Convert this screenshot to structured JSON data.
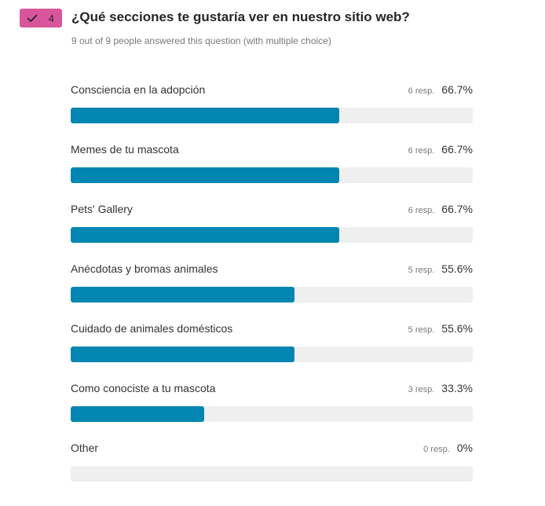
{
  "question": {
    "number": "4",
    "badge_color": "#d9559b",
    "badge_icon": "check-icon",
    "title": "¿Qué secciones te gustaría ver en nuestro sitio web?",
    "subtitle": "9 out of 9 people answered this question (with multiple choice)"
  },
  "bar_color": "#0086b0",
  "track_color": "#efefef",
  "options": [
    {
      "label": "Consciencia en la adopción",
      "count": "6 resp.",
      "percent": "66.7%",
      "fraction": 0.667
    },
    {
      "label": "Memes de tu mascota",
      "count": "6 resp.",
      "percent": "66.7%",
      "fraction": 0.667
    },
    {
      "label": "Pets' Gallery",
      "count": "6 resp.",
      "percent": "66.7%",
      "fraction": 0.667
    },
    {
      "label": "Anécdotas y bromas animales",
      "count": "5 resp.",
      "percent": "55.6%",
      "fraction": 0.556
    },
    {
      "label": "Cuidado de animales domésticos",
      "count": "5 resp.",
      "percent": "55.6%",
      "fraction": 0.556
    },
    {
      "label": "Como conociste a tu mascota",
      "count": "3 resp.",
      "percent": "33.3%",
      "fraction": 0.333
    },
    {
      "label": "Other",
      "count": "0 resp.",
      "percent": "0%",
      "fraction": 0
    }
  ]
}
